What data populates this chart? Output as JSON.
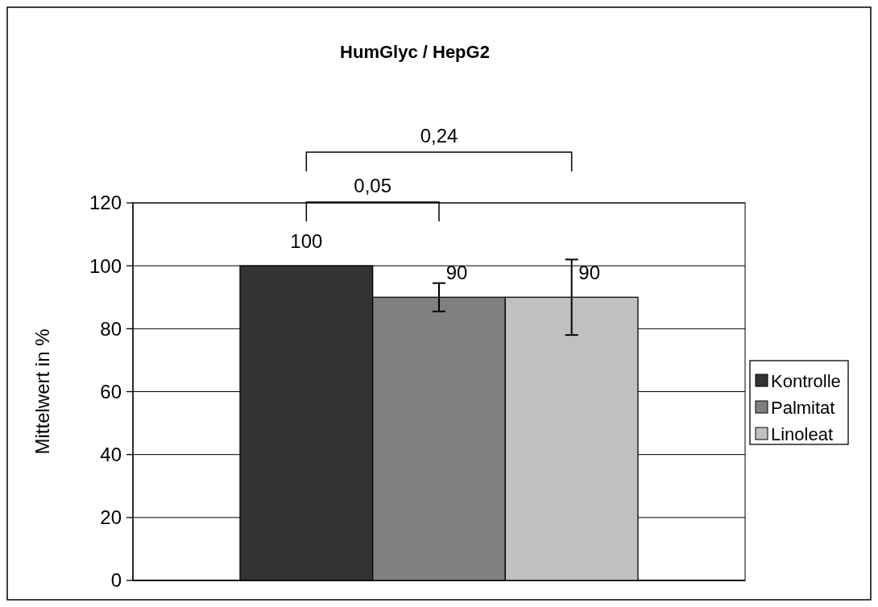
{
  "chart_data": {
    "type": "bar",
    "title": "HumGlyc / HepG2",
    "ylabel": "Mittelwert in %",
    "categories": [
      null
    ],
    "series": [
      {
        "name": "Kontrolle",
        "color": "#333333",
        "values": [
          100
        ]
      },
      {
        "name": "Palmitat",
        "color": "#808080",
        "values": [
          90
        ],
        "errors": [
          4.5
        ]
      },
      {
        "name": "Linoleat",
        "color": "#c0c0c0",
        "values": [
          90
        ],
        "errors": [
          12
        ]
      }
    ],
    "ylim": [
      0,
      120
    ],
    "yticks": [
      0,
      20,
      40,
      60,
      80,
      100,
      120
    ],
    "grid": "y",
    "legend": "right",
    "data_labels": true,
    "annotations": [
      "0,05",
      "0,24"
    ]
  }
}
